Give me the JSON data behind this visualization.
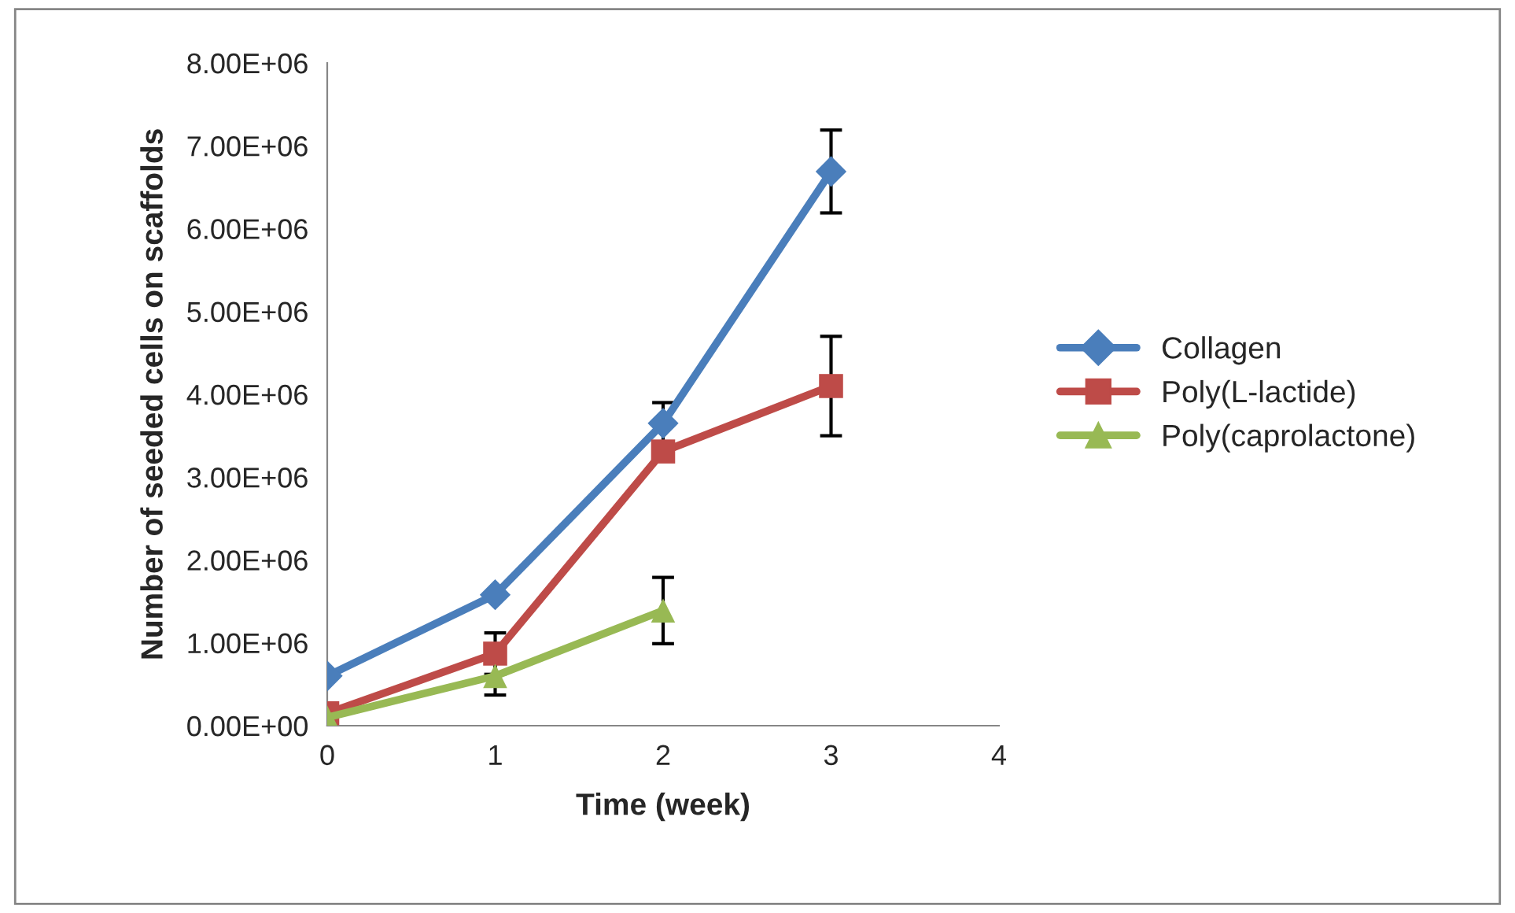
{
  "chart_data": {
    "type": "line",
    "xlabel": "Time (week)",
    "ylabel": "Number of seeded cells on scaffolds",
    "xlim": [
      0,
      4
    ],
    "xticks": [
      0,
      1,
      2,
      3,
      4
    ],
    "ylim": [
      0,
      8000000
    ],
    "yticks": [
      {
        "value": 0,
        "label": "0.00E+00"
      },
      {
        "value": 1000000,
        "label": "1.00E+06"
      },
      {
        "value": 2000000,
        "label": "2.00E+06"
      },
      {
        "value": 3000000,
        "label": "3.00E+06"
      },
      {
        "value": 4000000,
        "label": "4.00E+06"
      },
      {
        "value": 5000000,
        "label": "5.00E+06"
      },
      {
        "value": 6000000,
        "label": "6.00E+06"
      },
      {
        "value": 7000000,
        "label": "7.00E+06"
      },
      {
        "value": 8000000,
        "label": "8.00E+06"
      }
    ],
    "grid": false,
    "legend": "right",
    "series": [
      {
        "name": "Collagen",
        "color": "#4a7ebb",
        "marker": "diamond",
        "x": [
          0,
          1,
          2,
          3
        ],
        "values": [
          600000,
          1580000,
          3650000,
          6690000
        ],
        "errors": [
          null,
          null,
          250000,
          500000
        ]
      },
      {
        "name": "Poly(L-lactide)",
        "color": "#be4b48",
        "marker": "square",
        "x": [
          0,
          1,
          2,
          3
        ],
        "values": [
          150000,
          870000,
          3310000,
          4100000
        ],
        "errors": [
          null,
          250000,
          null,
          600000
        ]
      },
      {
        "name": "Poly(caprolactone)",
        "color": "#98b954",
        "marker": "triangle",
        "x": [
          0,
          1,
          2
        ],
        "values": [
          100000,
          600000,
          1390000
        ],
        "errors": [
          null,
          230000,
          400000
        ]
      }
    ]
  }
}
